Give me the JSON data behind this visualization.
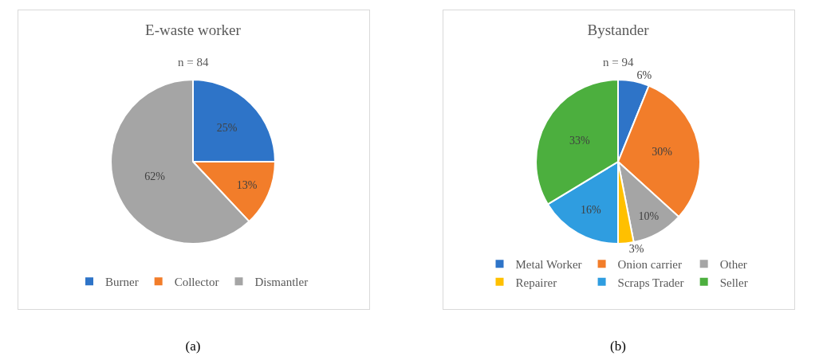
{
  "chart_data": [
    {
      "type": "pie",
      "title": "E-waste worker",
      "subtitle": "n = 84",
      "categories": [
        "Burner",
        "Collector",
        "Dismantler"
      ],
      "values": [
        25,
        13,
        62
      ],
      "colors": [
        "#2e74c8",
        "#f27d2a",
        "#a5a5a5"
      ],
      "value_labels": [
        "25%",
        "13%",
        "62%"
      ],
      "legend": "bottom",
      "annotations": [
        "(a)"
      ]
    },
    {
      "type": "pie",
      "title": "Bystander",
      "subtitle": "n = 94",
      "categories": [
        "Metal Worker",
        "Onion carrier",
        "Other",
        "Repairer",
        "Scraps Trader",
        "Seller"
      ],
      "values": [
        6,
        30,
        10,
        3,
        16,
        33
      ],
      "colors": [
        "#2e74c8",
        "#f27d2a",
        "#a5a5a5",
        "#ffc000",
        "#2f9de0",
        "#4caf3e"
      ],
      "value_labels": [
        "6%",
        "30%",
        "10%",
        "3%",
        "16%",
        "33%"
      ],
      "legend": "bottom",
      "annotations": [
        "(b)"
      ]
    }
  ]
}
